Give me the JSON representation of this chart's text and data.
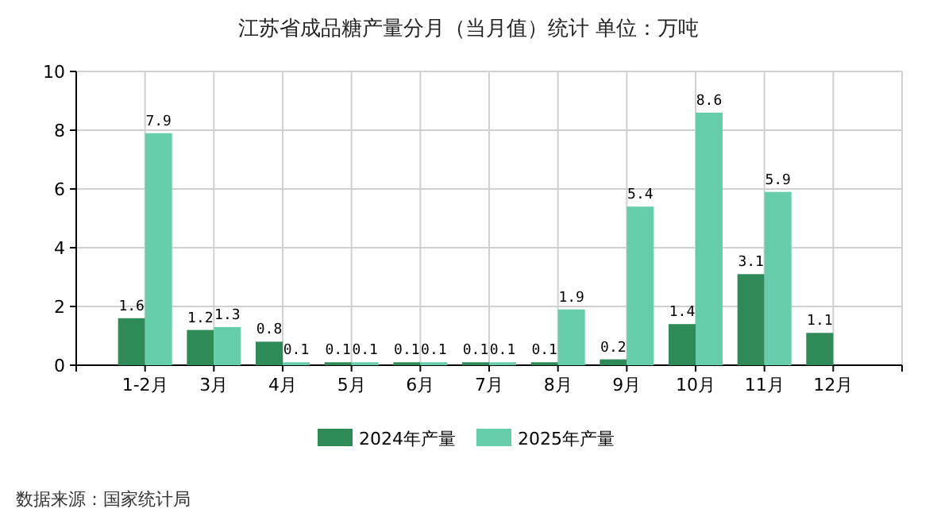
{
  "chart_data": {
    "type": "bar",
    "title": "江苏省成品糖产量分月（当月值）统计  单位：万吨",
    "categories": [
      "1-2月",
      "3月",
      "4月",
      "5月",
      "6月",
      "7月",
      "8月",
      "9月",
      "10月",
      "11月",
      "12月"
    ],
    "series": [
      {
        "name": "2024年产量",
        "color": "#2e8b57",
        "values": [
          1.6,
          1.2,
          0.8,
          0.1,
          0.1,
          0.1,
          0.1,
          0.2,
          1.4,
          3.1,
          1.1
        ]
      },
      {
        "name": "2025年产量",
        "color": "#66cdaa",
        "values": [
          7.9,
          1.3,
          0.1,
          0.1,
          0.1,
          0.1,
          1.9,
          5.4,
          8.6,
          5.9,
          null
        ]
      }
    ],
    "ylim": [
      0,
      10
    ],
    "yticks": [
      0,
      2,
      4,
      6,
      8,
      10
    ],
    "grid": true,
    "legend": "bottom",
    "data_labels": true,
    "annotations": [
      "数据来源：国家统计局"
    ]
  }
}
